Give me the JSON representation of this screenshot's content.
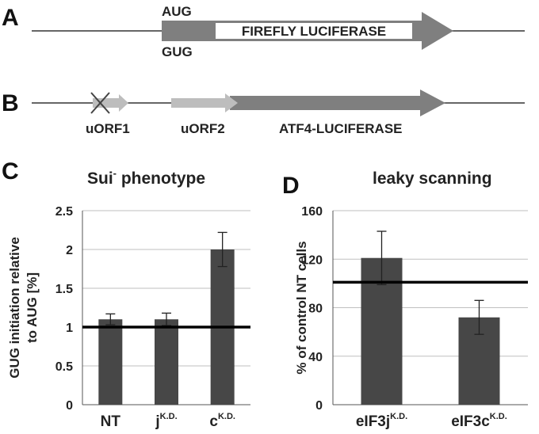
{
  "panels": {
    "A": {
      "letter": "A",
      "start_codon_top": "AUG",
      "start_codon_bottom": "GUG",
      "gene": "FIREFLY LUCIFERASE"
    },
    "B": {
      "letter": "B",
      "uorf1": "uORF1",
      "uorf2": "uORF2",
      "reporter": "ATF4-LUCIFERASE"
    },
    "C": {
      "letter": "C",
      "title_main": "Sui",
      "title_sup": "-",
      "title_rest": " phenotype"
    },
    "D": {
      "letter": "D",
      "title": "leaky scanning"
    }
  },
  "colors": {
    "bar": "#474747",
    "arrow_dark": "#7f7f7f",
    "arrow_light": "#bdbdbd",
    "grid": "#bfbfbf",
    "reference_line": "#000000"
  },
  "chart_data": [
    {
      "id": "C",
      "type": "bar",
      "title": "Sui- phenotype",
      "ylabel_line1": "GUG initiation relative",
      "ylabel_line2": "to AUG [%]",
      "ylim": [
        0,
        2.5
      ],
      "yticks": [
        "0",
        "0.5",
        "1",
        "1.5",
        "2",
        "2.5"
      ],
      "ytick_values": [
        0,
        0.5,
        1,
        1.5,
        2,
        2.5
      ],
      "categories": [
        {
          "base": "NT",
          "sup": ""
        },
        {
          "base": "j",
          "sup": "K.D."
        },
        {
          "base": "c",
          "sup": "K.D."
        }
      ],
      "values": [
        1.1,
        1.1,
        2.0
      ],
      "errors": [
        0.07,
        0.08,
        0.22
      ],
      "reference_value": 1.0,
      "grid": true
    },
    {
      "id": "D",
      "type": "bar",
      "title": "leaky scanning",
      "ylabel": "% of control NT cells",
      "ylim": [
        0,
        160
      ],
      "yticks": [
        "0",
        "40",
        "80",
        "120",
        "160"
      ],
      "ytick_values": [
        0,
        40,
        80,
        120,
        160
      ],
      "categories": [
        {
          "base": "eIF3j",
          "sup": "K.D."
        },
        {
          "base": "eIF3c",
          "sup": "K.D."
        }
      ],
      "values": [
        121,
        72
      ],
      "errors": [
        22,
        14
      ],
      "reference_value": 101,
      "grid": true
    }
  ]
}
